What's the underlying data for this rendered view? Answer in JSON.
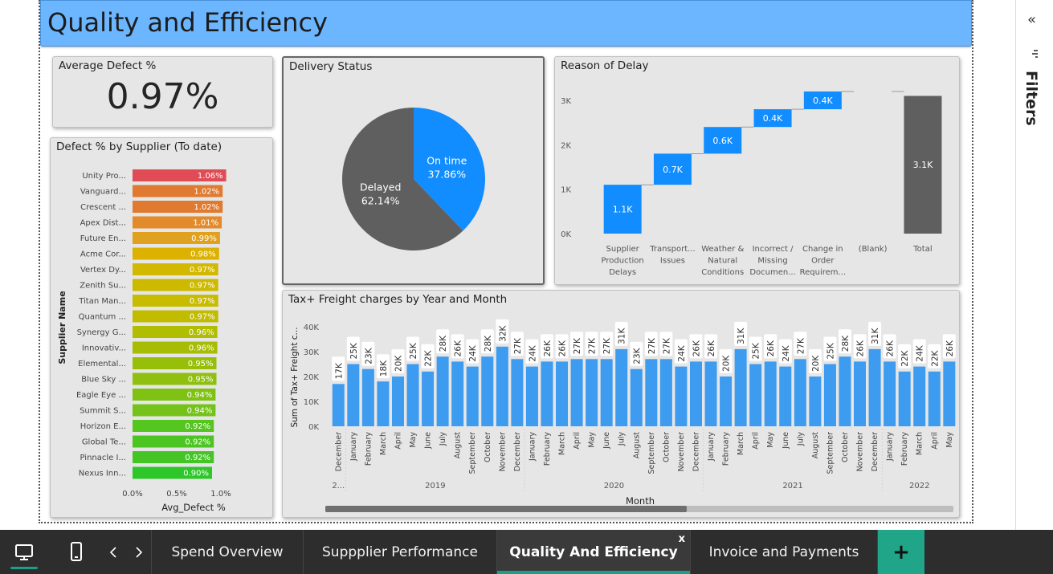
{
  "page_title": "Quality and Efficiency",
  "avg_defect": {
    "title": "Average Defect %",
    "value": "0.97%"
  },
  "delivery_status": {
    "title": "Delivery Status",
    "slices": [
      {
        "name": "On time",
        "pct": 37.86,
        "label": "37.86%",
        "color": "#118dff"
      },
      {
        "name": "Delayed",
        "pct": 62.14,
        "label": "62.14%",
        "color": "#5f5f5f"
      }
    ]
  },
  "defect_by_supplier": {
    "title": "Defect % by Supplier (To date)",
    "ylabel": "Supplier Name",
    "xlabel": "Avg_Defect %",
    "xticks": [
      "0.0%",
      "0.5%",
      "1.0%"
    ],
    "xmax": 1.0,
    "rows": [
      {
        "name": "Unity Pro...",
        "value": 1.06,
        "label": "1.06%",
        "color": "#e04c55"
      },
      {
        "name": "Vanguard...",
        "value": 1.02,
        "label": "1.02%",
        "color": "#e07a30"
      },
      {
        "name": "Crescent ...",
        "value": 1.02,
        "label": "1.02%",
        "color": "#e07a30"
      },
      {
        "name": "Apex Dist...",
        "value": 1.01,
        "label": "1.01%",
        "color": "#e38a2a"
      },
      {
        "name": "Future En...",
        "value": 0.99,
        "label": "0.99%",
        "color": "#e0a020"
      },
      {
        "name": "Acme Cor...",
        "value": 0.98,
        "label": "0.98%",
        "color": "#dcb100"
      },
      {
        "name": "Vertex Dy...",
        "value": 0.97,
        "label": "0.97%",
        "color": "#d2b800"
      },
      {
        "name": "Zenith Su...",
        "value": 0.97,
        "label": "0.97%",
        "color": "#ccb900"
      },
      {
        "name": "Titan Man...",
        "value": 0.97,
        "label": "0.97%",
        "color": "#c8bc00"
      },
      {
        "name": "Quantum ...",
        "value": 0.97,
        "label": "0.97%",
        "color": "#c2bc00"
      },
      {
        "name": "Synergy G...",
        "value": 0.96,
        "label": "0.96%",
        "color": "#b0bd00"
      },
      {
        "name": "Innovativ...",
        "value": 0.96,
        "label": "0.96%",
        "color": "#a7bd05"
      },
      {
        "name": "Elemental...",
        "value": 0.95,
        "label": "0.95%",
        "color": "#97bf0a"
      },
      {
        "name": "Blue Sky ...",
        "value": 0.95,
        "label": "0.95%",
        "color": "#8fc00f"
      },
      {
        "name": "Eagle Eye ...",
        "value": 0.94,
        "label": "0.94%",
        "color": "#80c214"
      },
      {
        "name": "Summit S...",
        "value": 0.94,
        "label": "0.94%",
        "color": "#75c31a"
      },
      {
        "name": "Horizon E...",
        "value": 0.92,
        "label": "0.92%",
        "color": "#55c520"
      },
      {
        "name": "Global Te...",
        "value": 0.92,
        "label": "0.92%",
        "color": "#4cc522"
      },
      {
        "name": "Pinnacle I...",
        "value": 0.92,
        "label": "0.92%",
        "color": "#44c525"
      },
      {
        "name": "Nexus Inn...",
        "value": 0.9,
        "label": "0.90%",
        "color": "#2ec72a"
      }
    ]
  },
  "reason_of_delay": {
    "title": "Reason of Delay",
    "yticks": [
      "0K",
      "1K",
      "2K",
      "3K"
    ],
    "ymax": 3.3,
    "steps": [
      {
        "lines": [
          "Supplier",
          "Production",
          "Delays"
        ],
        "value": 1.1,
        "label": "1.1K",
        "kind": "step"
      },
      {
        "lines": [
          "Transport...",
          "Issues"
        ],
        "value": 0.7,
        "label": "0.7K",
        "kind": "step"
      },
      {
        "lines": [
          "Weather &",
          "Natural",
          "Conditions"
        ],
        "value": 0.6,
        "label": "0.6K",
        "kind": "step"
      },
      {
        "lines": [
          "Incorrect /",
          "Missing",
          "Documen..."
        ],
        "value": 0.4,
        "label": "0.4K",
        "kind": "step"
      },
      {
        "lines": [
          "Change in",
          "Order",
          "Requirem..."
        ],
        "value": 0.4,
        "label": "0.4K",
        "kind": "step"
      },
      {
        "lines": [
          "(Blank)"
        ],
        "value": 0,
        "label": "",
        "kind": "step"
      },
      {
        "lines": [
          "Total"
        ],
        "value": 3.1,
        "label": "3.1K",
        "kind": "total"
      }
    ]
  },
  "tax_freight": {
    "title": "Tax+ Freight charges by Year and Month",
    "ylabel": "Sum of Tax+ Freight c...",
    "xlabel": "Month",
    "yticks": [
      "0K",
      "10K",
      "20K",
      "30K",
      "40K"
    ],
    "ymax": 40,
    "years": [
      {
        "label": "2...",
        "start": 0,
        "count": 1
      },
      {
        "label": "2019",
        "start": 1,
        "count": 12
      },
      {
        "label": "2020",
        "start": 13,
        "count": 12
      },
      {
        "label": "2021",
        "start": 25,
        "count": 12
      },
      {
        "label": "2022",
        "start": 37,
        "count": 5
      }
    ],
    "bars": [
      {
        "month": "December",
        "value": 17,
        "label": "17K"
      },
      {
        "month": "January",
        "value": 25,
        "label": "25K"
      },
      {
        "month": "February",
        "value": 23,
        "label": "23K"
      },
      {
        "month": "March",
        "value": 18,
        "label": "18K"
      },
      {
        "month": "April",
        "value": 20,
        "label": "20K"
      },
      {
        "month": "May",
        "value": 25,
        "label": "25K"
      },
      {
        "month": "June",
        "value": 22,
        "label": "22K"
      },
      {
        "month": "July",
        "value": 28,
        "label": "28K"
      },
      {
        "month": "August",
        "value": 26,
        "label": "26K"
      },
      {
        "month": "September",
        "value": 24,
        "label": "24K"
      },
      {
        "month": "October",
        "value": 28,
        "label": "28K"
      },
      {
        "month": "November",
        "value": 32,
        "label": "32K"
      },
      {
        "month": "December",
        "value": 27,
        "label": "27K"
      },
      {
        "month": "January",
        "value": 24,
        "label": "24K"
      },
      {
        "month": "February",
        "value": 26,
        "label": "26K"
      },
      {
        "month": "March",
        "value": 26,
        "label": "26K"
      },
      {
        "month": "April",
        "value": 27,
        "label": "27K"
      },
      {
        "month": "May",
        "value": 27,
        "label": "27K"
      },
      {
        "month": "June",
        "value": 27,
        "label": "27K"
      },
      {
        "month": "July",
        "value": 31,
        "label": "31K"
      },
      {
        "month": "August",
        "value": 23,
        "label": "23K"
      },
      {
        "month": "September",
        "value": 27,
        "label": "27K"
      },
      {
        "month": "October",
        "value": 27,
        "label": "27K"
      },
      {
        "month": "November",
        "value": 24,
        "label": "24K"
      },
      {
        "month": "December",
        "value": 26,
        "label": "26K"
      },
      {
        "month": "January",
        "value": 26,
        "label": "26K"
      },
      {
        "month": "February",
        "value": 20,
        "label": "20K"
      },
      {
        "month": "March",
        "value": 31,
        "label": "31K"
      },
      {
        "month": "April",
        "value": 25,
        "label": "25K"
      },
      {
        "month": "May",
        "value": 26,
        "label": "26K"
      },
      {
        "month": "June",
        "value": 24,
        "label": "24K"
      },
      {
        "month": "July",
        "value": 27,
        "label": "27K"
      },
      {
        "month": "August",
        "value": 20,
        "label": "20K"
      },
      {
        "month": "September",
        "value": 25,
        "label": "25K"
      },
      {
        "month": "October",
        "value": 28,
        "label": "28K"
      },
      {
        "month": "November",
        "value": 26,
        "label": "26K"
      },
      {
        "month": "December",
        "value": 31,
        "label": "31K"
      },
      {
        "month": "January",
        "value": 26,
        "label": "26K"
      },
      {
        "month": "February",
        "value": 22,
        "label": "22K"
      },
      {
        "month": "March",
        "value": 24,
        "label": "24K"
      },
      {
        "month": "April",
        "value": 22,
        "label": "22K"
      },
      {
        "month": "May",
        "value": 26,
        "label": "26K"
      }
    ]
  },
  "filters": {
    "label": "Filters"
  },
  "tabs": [
    {
      "label": "Spend Overview",
      "active": false
    },
    {
      "label": "Suppplier Performance",
      "active": false
    },
    {
      "label": "Quality And Efficiency",
      "active": true
    },
    {
      "label": "Invoice and Payments",
      "active": false
    }
  ],
  "tab_close_glyph": "x",
  "add_tab_glyph": "+"
}
